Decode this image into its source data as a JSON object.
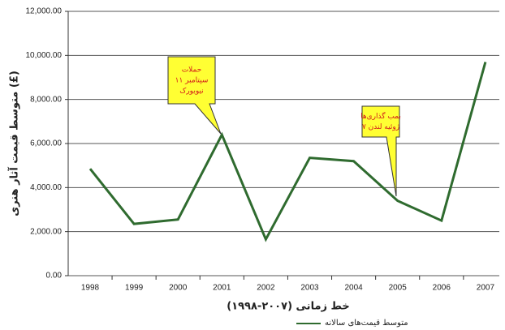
{
  "chart_data": {
    "type": "line",
    "y_label": "متوسط قیمت آثار هنری (£)",
    "x_label": "خط زمانی (۲۰۰۷-۱۹۹۸)",
    "categories": [
      "1998",
      "1999",
      "2000",
      "2001",
      "2002",
      "2003",
      "2004",
      "2005",
      "2006",
      "2007"
    ],
    "series": [
      {
        "name": "متوسط قیمت‌های سالانه",
        "color": "#2f6b2f",
        "values": [
          4850,
          2350,
          2550,
          6400,
          1650,
          5350,
          5200,
          3400,
          2500,
          9700
        ]
      }
    ],
    "ylim": [
      0,
      12000
    ],
    "yticks": [
      {
        "value": 0,
        "label": "0.00"
      },
      {
        "value": 2000,
        "label": "2,000.00"
      },
      {
        "value": 4000,
        "label": "4,000.00"
      },
      {
        "value": 6000,
        "label": "6,000.00"
      },
      {
        "value": 8000,
        "label": "8,000.00"
      },
      {
        "value": 10000,
        "label": "10,000.00"
      },
      {
        "value": 12000,
        "label": "12,000.00"
      }
    ],
    "grid": true,
    "legend": "bottom-right",
    "annotations": [
      {
        "lines": [
          "حملات",
          "۱۱ سپتامبر",
          "نیویورک"
        ]
      },
      {
        "lines": [
          "بمب گذاری‌ها",
          "۷ ژوئیه لندن"
        ]
      }
    ]
  }
}
